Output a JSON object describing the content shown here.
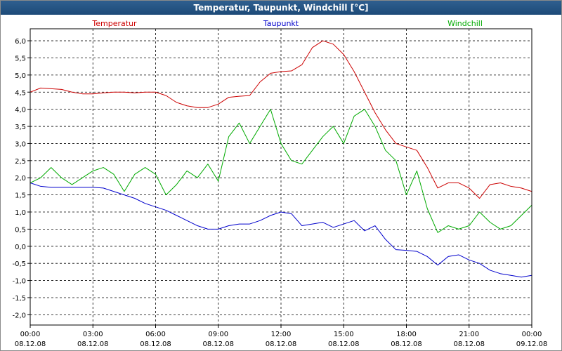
{
  "window": {
    "title": "Temperatur, Taupunkt, Windchill [°C]"
  },
  "chart_data": {
    "type": "line",
    "x_unit": "hours",
    "x": [
      0,
      0.5,
      1,
      1.5,
      2,
      2.5,
      3,
      3.5,
      4,
      4.5,
      5,
      5.5,
      6,
      6.5,
      7,
      7.5,
      8,
      8.5,
      9,
      9.5,
      10,
      10.5,
      11,
      11.5,
      12,
      12.5,
      13,
      13.5,
      14,
      14.5,
      15,
      15.5,
      16,
      16.5,
      17,
      17.5,
      18,
      18.5,
      19,
      19.5,
      20,
      20.5,
      21,
      21.5,
      22,
      22.5,
      23,
      23.5,
      24
    ],
    "x_tick_values": [
      0,
      3,
      6,
      9,
      12,
      15,
      18,
      21,
      24
    ],
    "x_tick_labels": [
      {
        "time": "00:00",
        "date": "08.12.08"
      },
      {
        "time": "03:00",
        "date": "08.12.08"
      },
      {
        "time": "06:00",
        "date": "08.12.08"
      },
      {
        "time": "09:00",
        "date": "08.12.08"
      },
      {
        "time": "12:00",
        "date": "08.12.08"
      },
      {
        "time": "15:00",
        "date": "08.12.08"
      },
      {
        "time": "18:00",
        "date": "08.12.08"
      },
      {
        "time": "21:00",
        "date": "08.12.08"
      },
      {
        "time": "00:00",
        "date": "09.12.08"
      }
    ],
    "y_ticks": [
      "6,0",
      "5,5",
      "5,0",
      "4,5",
      "4,0",
      "3,5",
      "3,0",
      "2,5",
      "2,0",
      "1,5",
      "1,0",
      "0,5",
      "0,0",
      "-0,5",
      "-1,0",
      "-1,5",
      "-2,0"
    ],
    "y_tick_values": [
      6,
      5.5,
      5,
      4.5,
      4,
      3.5,
      3,
      2.5,
      2,
      1.5,
      1,
      0.5,
      0,
      -0.5,
      -1,
      -1.5,
      -2
    ],
    "ylim": [
      -2.3,
      6.35
    ],
    "xlim": [
      0,
      24
    ],
    "grid": true,
    "legend_position": "top",
    "series": [
      {
        "name": "Temperatur",
        "color": "#cc0000",
        "values": [
          4.5,
          4.62,
          4.6,
          4.58,
          4.5,
          4.45,
          4.45,
          4.48,
          4.5,
          4.5,
          4.48,
          4.5,
          4.5,
          4.4,
          4.2,
          4.1,
          4.05,
          4.05,
          4.15,
          4.35,
          4.38,
          4.4,
          4.8,
          5.05,
          5.1,
          5.12,
          5.3,
          5.8,
          6.0,
          5.9,
          5.6,
          5.1,
          4.5,
          3.9,
          3.4,
          3.0,
          2.9,
          2.8,
          2.3,
          1.7,
          1.85,
          1.85,
          1.7,
          1.4,
          1.8,
          1.85,
          1.75,
          1.7,
          1.6
        ]
      },
      {
        "name": "Taupunkt",
        "color": "#0000cc",
        "values": [
          1.85,
          1.75,
          1.72,
          1.72,
          1.72,
          1.72,
          1.72,
          1.7,
          1.6,
          1.5,
          1.4,
          1.25,
          1.15,
          1.05,
          0.9,
          0.75,
          0.6,
          0.5,
          0.5,
          0.6,
          0.65,
          0.65,
          0.75,
          0.9,
          1.0,
          0.95,
          0.6,
          0.65,
          0.7,
          0.55,
          0.65,
          0.75,
          0.45,
          0.6,
          0.2,
          -0.1,
          -0.12,
          -0.15,
          -0.3,
          -0.55,
          -0.3,
          -0.25,
          -0.4,
          -0.5,
          -0.7,
          -0.8,
          -0.85,
          -0.9,
          -0.85
        ]
      },
      {
        "name": "Windchill",
        "color": "#00aa00",
        "values": [
          1.85,
          2.0,
          2.3,
          2.0,
          1.8,
          2.0,
          2.2,
          2.3,
          2.1,
          1.6,
          2.1,
          2.3,
          2.1,
          1.5,
          1.8,
          2.2,
          2.0,
          2.4,
          1.9,
          3.2,
          3.6,
          3.0,
          3.5,
          4.0,
          3.0,
          2.5,
          2.4,
          2.8,
          3.2,
          3.5,
          3.0,
          3.8,
          4.0,
          3.5,
          2.8,
          2.5,
          1.5,
          2.2,
          1.1,
          0.4,
          0.6,
          0.5,
          0.6,
          1.0,
          0.7,
          0.5,
          0.6,
          0.9,
          1.2
        ]
      }
    ]
  }
}
